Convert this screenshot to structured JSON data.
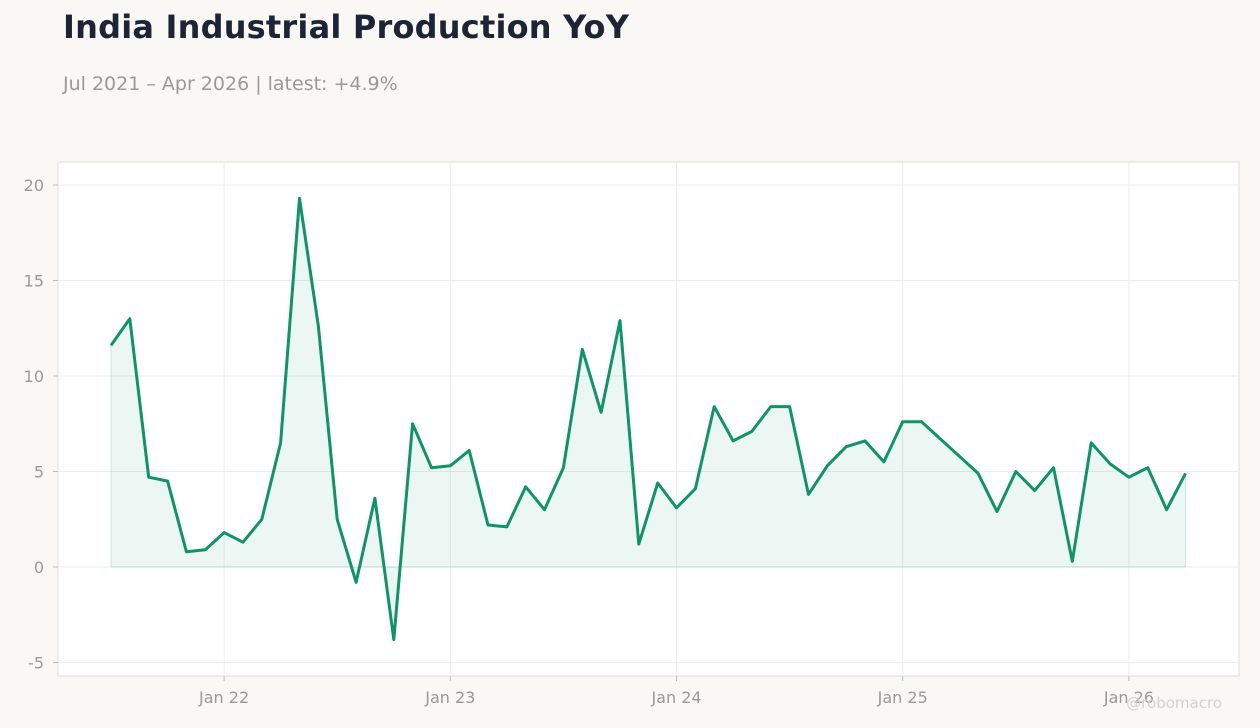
{
  "header": {
    "title": "India Industrial Production YoY",
    "subtitle": "Jul 2021 – Apr 2026 | latest: +4.9%"
  },
  "watermark": "@robomacro",
  "colors": {
    "line": "#0e9467",
    "fill": "#0e9467",
    "grid": "#ececec",
    "frame": "#dcdcd6",
    "plot_bg": "#ffffff"
  },
  "chart_data": {
    "type": "area",
    "x_start": "2021-07",
    "x_step": "month",
    "values": [
      11.6,
      13.0,
      4.7,
      4.5,
      0.8,
      0.9,
      1.8,
      1.3,
      2.5,
      6.5,
      19.3,
      12.6,
      2.5,
      -0.8,
      3.6,
      -3.8,
      7.5,
      5.2,
      5.3,
      6.1,
      2.2,
      2.1,
      4.2,
      3.0,
      5.2,
      11.4,
      8.1,
      12.9,
      1.2,
      4.4,
      3.1,
      4.1,
      8.4,
      6.6,
      7.1,
      8.4,
      8.4,
      3.8,
      5.3,
      6.3,
      6.6,
      5.5,
      7.6,
      7.6,
      6.7,
      5.8,
      4.9,
      2.9,
      5.0,
      4.0,
      5.2,
      0.3,
      6.5,
      5.4,
      4.7,
      5.2,
      3.0,
      4.9
    ],
    "yticks": [
      "20",
      "15",
      "10",
      "5",
      "0",
      "-5"
    ],
    "xticks": [
      {
        "label": "Jan 22",
        "date": "2022-01"
      },
      {
        "label": "Jan 23",
        "date": "2023-01"
      },
      {
        "label": "Jan 24",
        "date": "2024-01"
      },
      {
        "label": "Jan 25",
        "date": "2025-01"
      },
      {
        "label": "Jan 26",
        "date": "2026-01"
      }
    ],
    "ylim": [
      -5.5,
      21
    ],
    "grid": true,
    "legend": "none"
  }
}
